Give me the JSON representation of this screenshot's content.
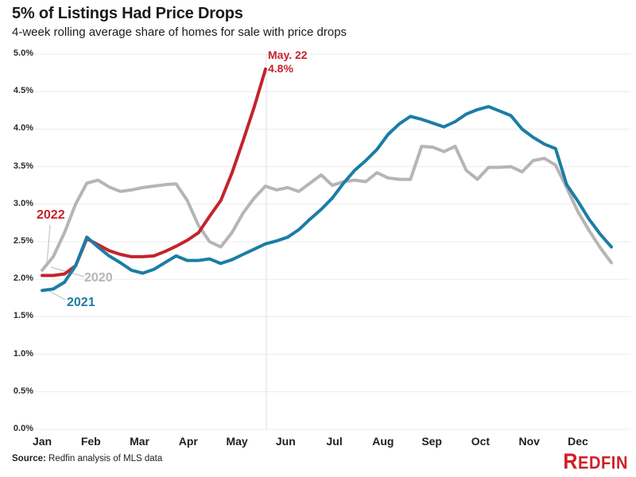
{
  "chart_data": {
    "type": "line",
    "title": "5% of Listings Had Price Drops",
    "subtitle": "4-week rolling average share of homes for sale with price drops",
    "unit": "percent",
    "ylim": [
      0,
      5
    ],
    "grid": true,
    "legend_position": "inline-labels-left",
    "y_tick_labels": [
      "5.0%",
      "4.5%",
      "4.0%",
      "3.5%",
      "3.0%",
      "2.5%",
      "2.0%",
      "1.5%",
      "1.0%",
      "0.5%",
      "0.0%"
    ],
    "x_tick_labels": [
      "Jan",
      "Feb",
      "Mar",
      "Apr",
      "May",
      "Jun",
      "Jul",
      "Aug",
      "Sep",
      "Oct",
      "Nov",
      "Dec"
    ],
    "x_unit": "weekly points, January through December",
    "annotation": {
      "date_label": "May. 22",
      "value_label": "4.8%"
    },
    "series": [
      {
        "name": "2020",
        "color": "#b5b5b5",
        "values": [
          2.12,
          2.3,
          2.62,
          3.0,
          3.28,
          3.32,
          3.23,
          3.17,
          3.19,
          3.22,
          3.24,
          3.26,
          3.27,
          3.05,
          2.72,
          2.5,
          2.43,
          2.62,
          2.88,
          3.08,
          3.24,
          3.19,
          3.22,
          3.17,
          3.28,
          3.39,
          3.25,
          3.3,
          3.32,
          3.3,
          3.42,
          3.35,
          3.33,
          3.33,
          3.77,
          3.76,
          3.7,
          3.77,
          3.45,
          3.33,
          3.49,
          3.49,
          3.5,
          3.43,
          3.58,
          3.61,
          3.52,
          3.22,
          2.9,
          2.65,
          2.42,
          2.22
        ]
      },
      {
        "name": "2021",
        "color": "#1b7da4",
        "values": [
          1.85,
          1.87,
          1.96,
          2.18,
          2.56,
          2.43,
          2.31,
          2.22,
          2.12,
          2.08,
          2.13,
          2.22,
          2.31,
          2.25,
          2.25,
          2.27,
          2.21,
          2.26,
          2.33,
          2.4,
          2.47,
          2.51,
          2.56,
          2.66,
          2.8,
          2.93,
          3.08,
          3.28,
          3.45,
          3.58,
          3.73,
          3.93,
          4.07,
          4.17,
          4.13,
          4.08,
          4.03,
          4.1,
          4.2,
          4.26,
          4.3,
          4.24,
          4.18,
          4.0,
          3.89,
          3.8,
          3.74,
          3.26,
          3.04,
          2.8,
          2.6,
          2.43
        ]
      },
      {
        "name": "2022",
        "color": "#c4232b",
        "end_label": "May. 22",
        "end_value": "4.8%",
        "values": [
          2.05,
          2.05,
          2.07,
          2.18,
          2.54,
          2.46,
          2.38,
          2.33,
          2.3,
          2.3,
          2.31,
          2.37,
          2.44,
          2.52,
          2.62,
          2.84,
          3.05,
          3.42,
          3.85,
          4.3,
          4.8
        ]
      }
    ]
  },
  "footer": {
    "source_label": "Source:",
    "source_text": " Redfin analysis of MLS data",
    "logo_text": "Redfin",
    "logo_color": "#d02028"
  }
}
